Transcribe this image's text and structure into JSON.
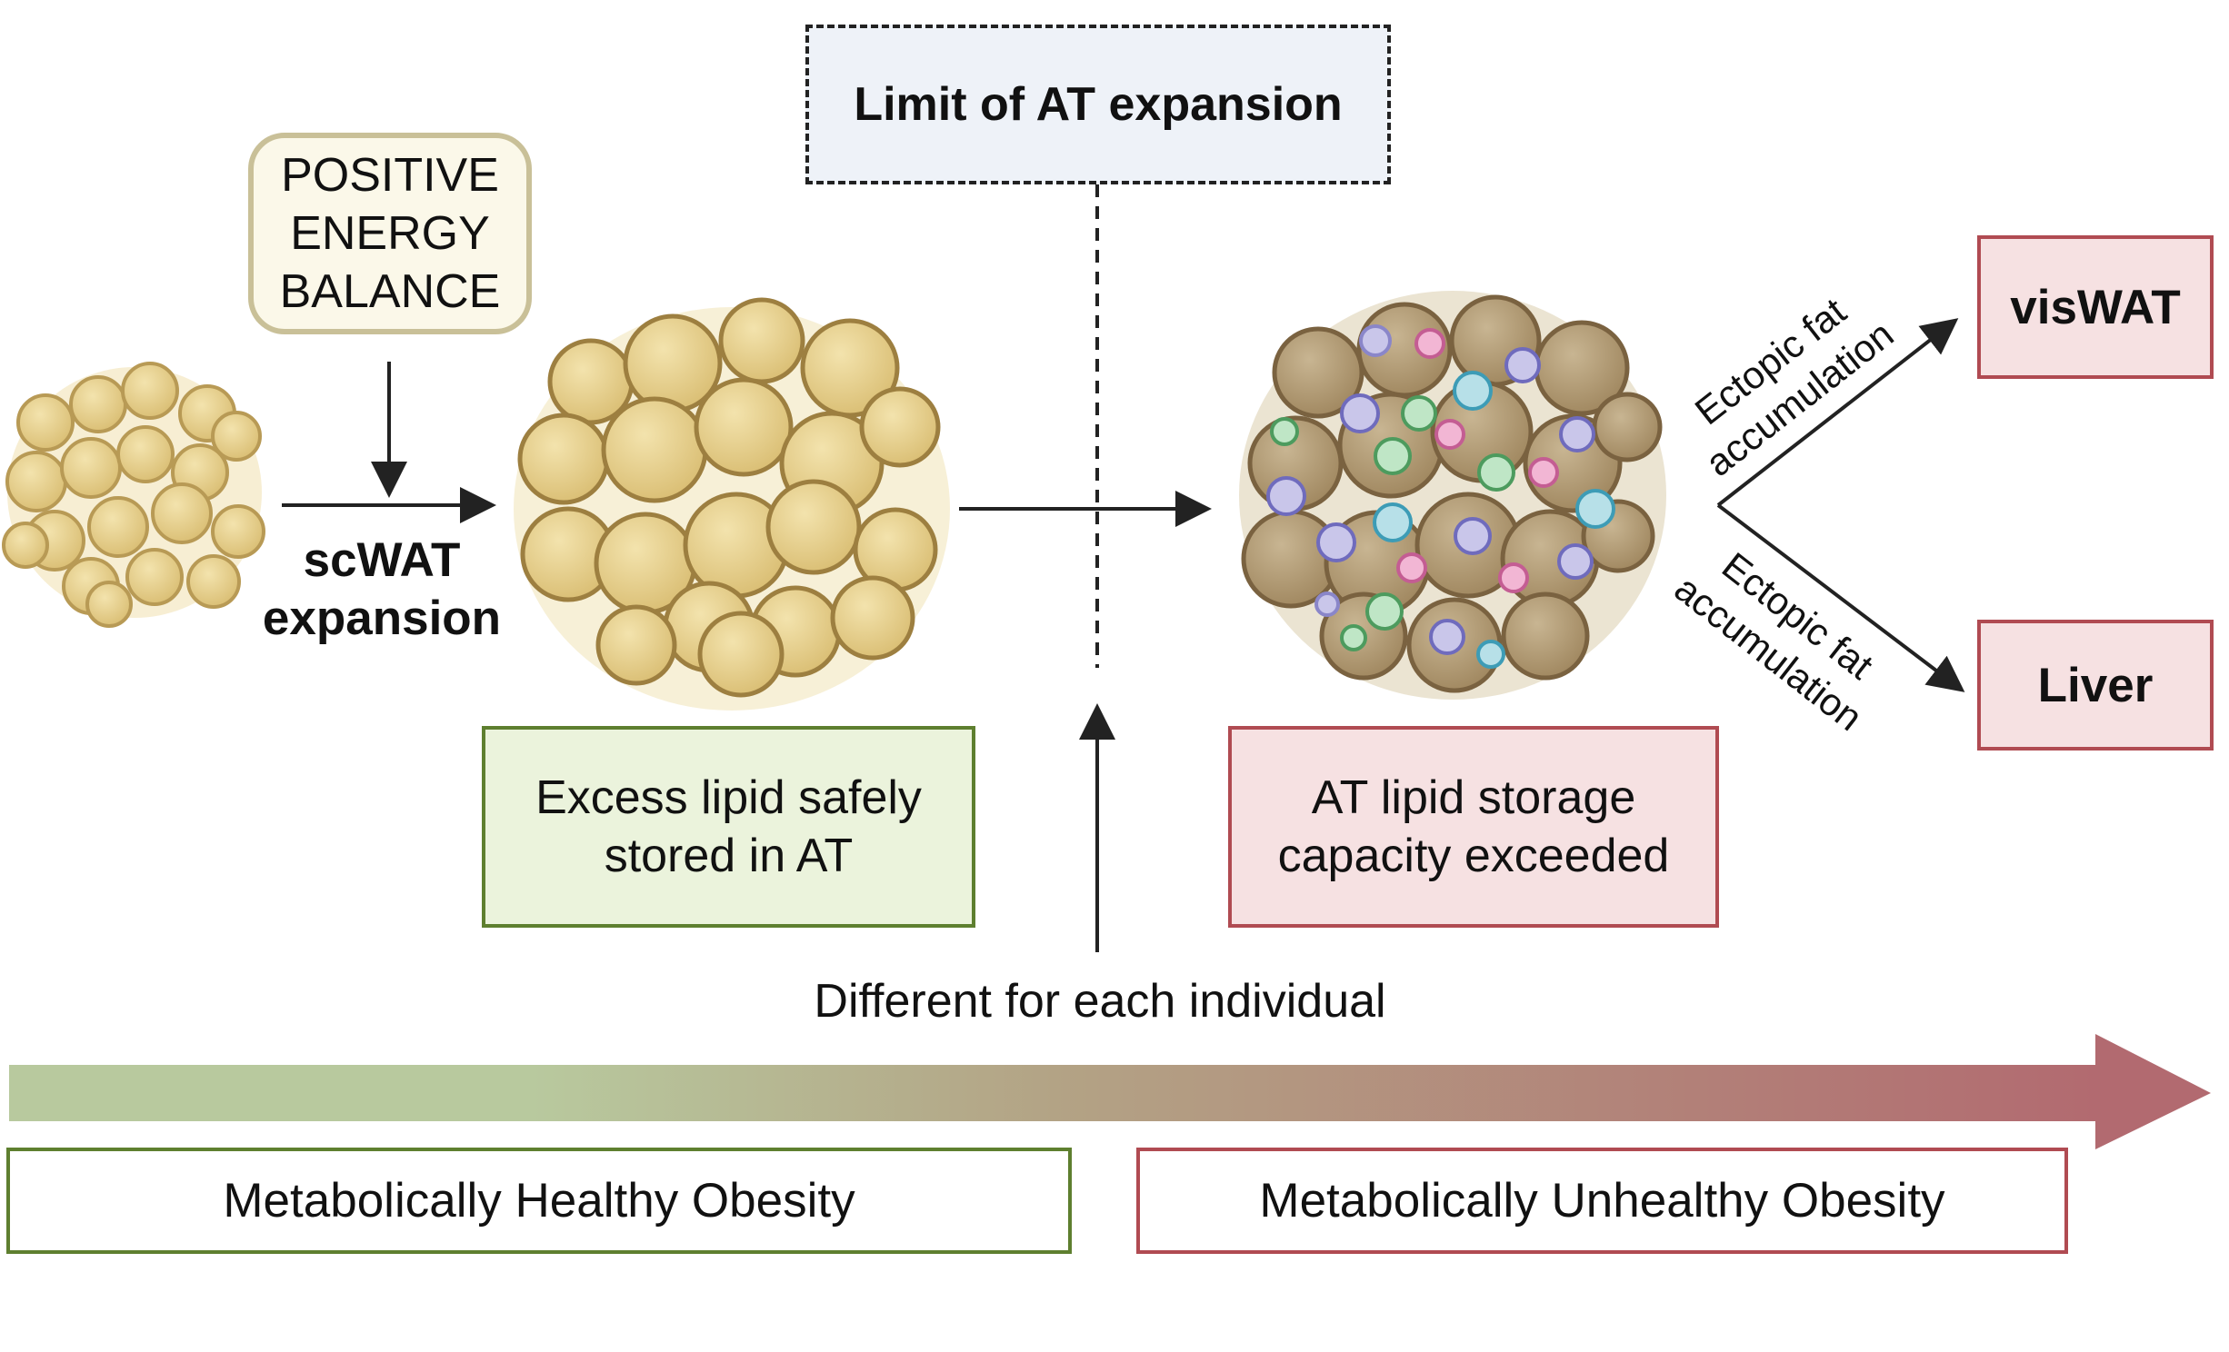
{
  "limit_label": "Limit of AT expansion",
  "energy_balance": {
    "line1": "POSITIVE",
    "line2": "ENERGY",
    "line3": "BALANCE"
  },
  "scwat": {
    "line1": "scWAT",
    "line2": "expansion"
  },
  "excess_lipid": {
    "line1": "Excess lipid safely",
    "line2": "stored in AT"
  },
  "capacity": {
    "line1": "AT lipid storage",
    "line2": "capacity exceeded"
  },
  "ectopic_upper": {
    "line1": "Ectopic fat",
    "line2": "accumulation"
  },
  "ectopic_lower": {
    "line1": "Ectopic fat",
    "line2": "accumulation"
  },
  "viswat_label": "visWAT",
  "liver_label": "Liver",
  "individual_label": "Different for each individual",
  "mho_label": "Metabolically Healthy Obesity",
  "muo_label": "Metabolically Unhealthy Obesity",
  "colors": {
    "healthy": "#5e7f2f",
    "unhealthy": "#b04b52",
    "gradient_start": "#b8c99e",
    "gradient_end": "#b26a70",
    "fat_cell": "#e8cf8a",
    "fibrotic_cell": "#b79e76"
  }
}
